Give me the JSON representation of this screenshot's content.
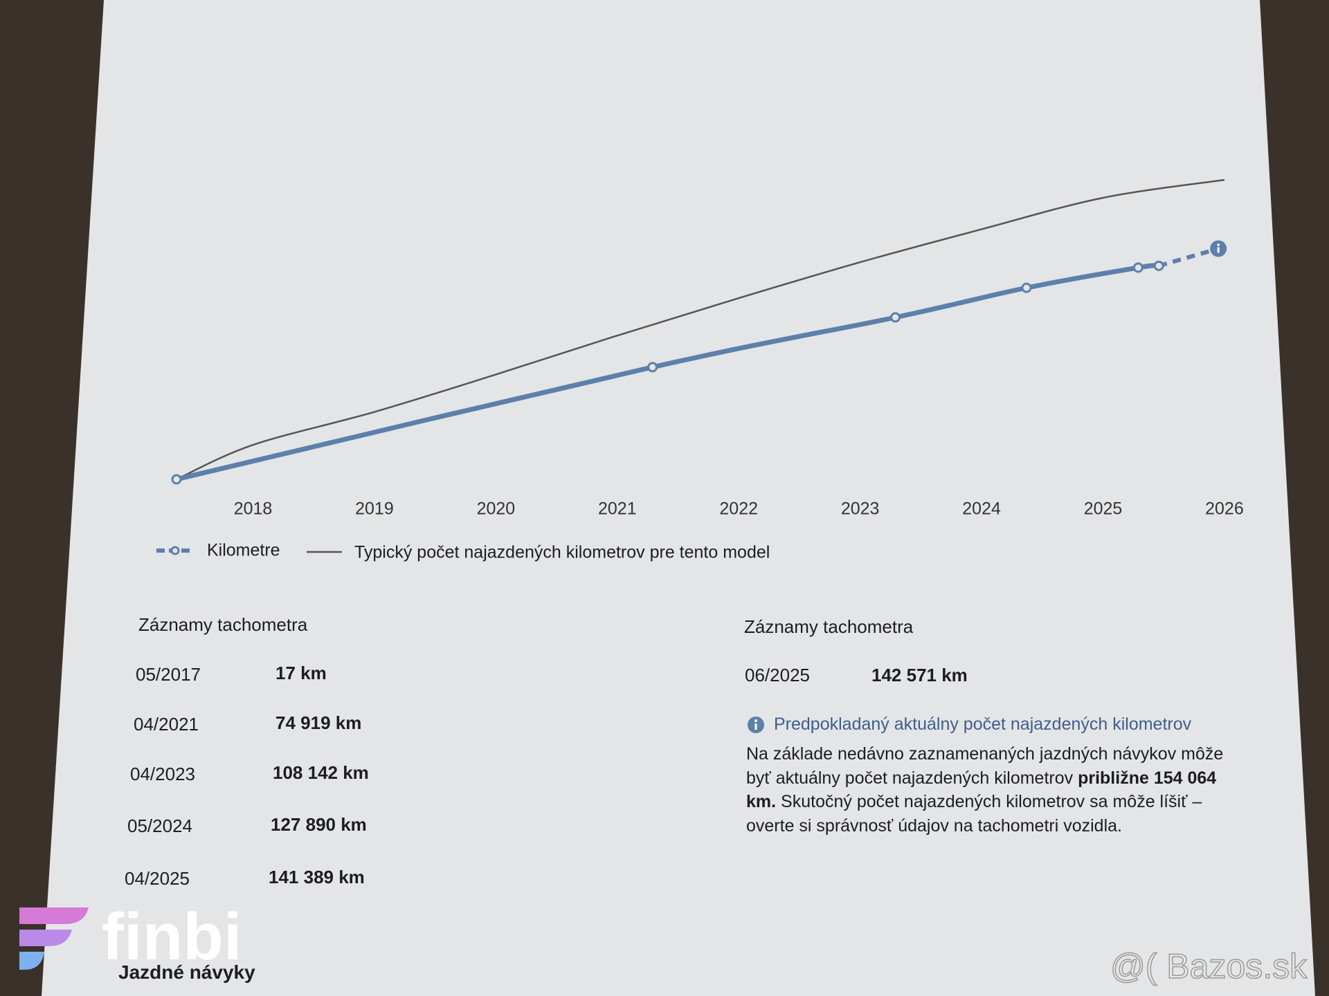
{
  "chart_data": {
    "type": "line",
    "xlim": [
      2017.3,
      2026.05
    ],
    "xticks": [
      2018,
      2019,
      2020,
      2021,
      2022,
      2023,
      2024,
      2025,
      2026
    ],
    "ylim": [
      0,
      200000
    ],
    "grid": false,
    "series": [
      {
        "name": "Kilometre",
        "color": "#5d80aa",
        "x": [
          2017.37,
          2021.29,
          2023.29,
          2024.37,
          2025.29,
          2025.46,
          2025.95
        ],
        "values": [
          17,
          74919,
          108142,
          127890,
          141389,
          142571,
          154064
        ]
      },
      {
        "name": "Typický počet najazdených kilometrov pre tento model",
        "color": "#555555",
        "x": [
          2017.37,
          2018,
          2019,
          2020,
          2021,
          2022,
          2023,
          2024,
          2025,
          2026
        ],
        "values": [
          0,
          23000,
          45000,
          70000,
          96000,
          121000,
          145000,
          167000,
          188000,
          200000
        ]
      }
    ]
  },
  "records_left": {
    "title": "Záznamy tachometra",
    "rows": [
      [
        "05/2017",
        "17 km"
      ],
      [
        "04/2021",
        "74 919 km"
      ],
      [
        "04/2023",
        "108 142 km"
      ],
      [
        "05/2024",
        "127 890 km"
      ],
      [
        "04/2025",
        "141 389 km"
      ]
    ]
  },
  "records_right": {
    "title": "Záznamy tachometra",
    "rows": [
      [
        "06/2025",
        "142 571 km"
      ]
    ]
  },
  "info": {
    "title": "Predpokladaný aktuálny počet najazdených kilometrov",
    "text_1": "Na základe nedávno zaznamenaných jazdných návykov môže byť aktuálny počet najazdených kilometrov",
    "text_bold": "približne 154 064 km.",
    "text_2": "Skutočný počet najazdených kilometrov sa môže líšiť – overte si správnosť údajov na tachometri vozidla."
  },
  "next_section": "Jazdné návyky",
  "watermarks": {
    "logo": "finbi",
    "site": "@( Bazos.sk"
  }
}
